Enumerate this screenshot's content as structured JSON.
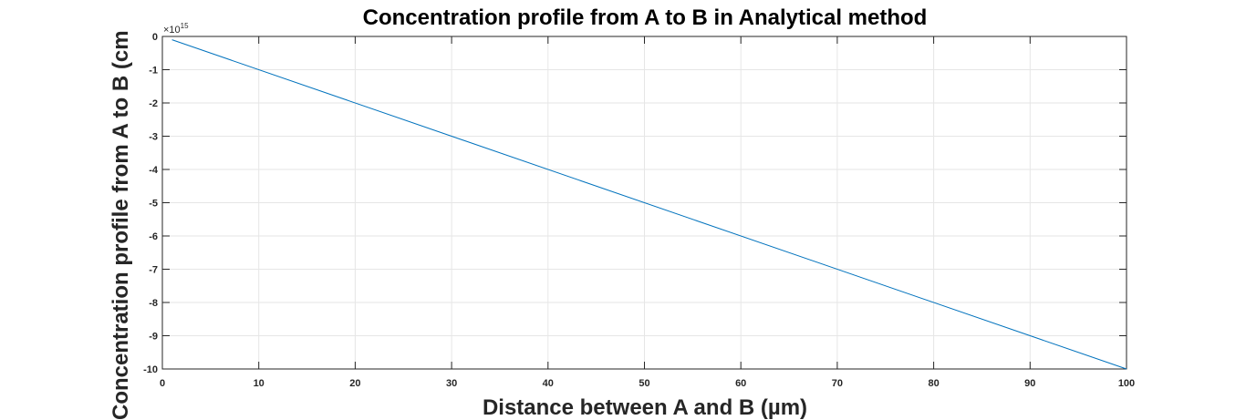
{
  "chart_data": {
    "type": "line",
    "title": "Concentration profile from A to B in Analytical method",
    "xlabel": "Distance between A and B (µm)",
    "ylabel": "Concentration profile from A to B (cm",
    "xlim": [
      0,
      100
    ],
    "ylim": [
      -10,
      0
    ],
    "x_ticks": [
      0,
      10,
      20,
      30,
      40,
      50,
      60,
      70,
      80,
      90,
      100
    ],
    "y_ticks": [
      0,
      -1,
      -2,
      -3,
      -4,
      -5,
      -6,
      -7,
      -8,
      -9,
      -10
    ],
    "y_exponent_base": "×10",
    "y_exponent_power": "15",
    "grid": true,
    "series": [
      {
        "x": [
          1,
          100
        ],
        "y": [
          -0.1,
          -10
        ],
        "color": "#0072BD"
      }
    ]
  },
  "colors": {
    "line": "#0072BD",
    "grid": "#e6e6e6",
    "axis": "#262626"
  }
}
